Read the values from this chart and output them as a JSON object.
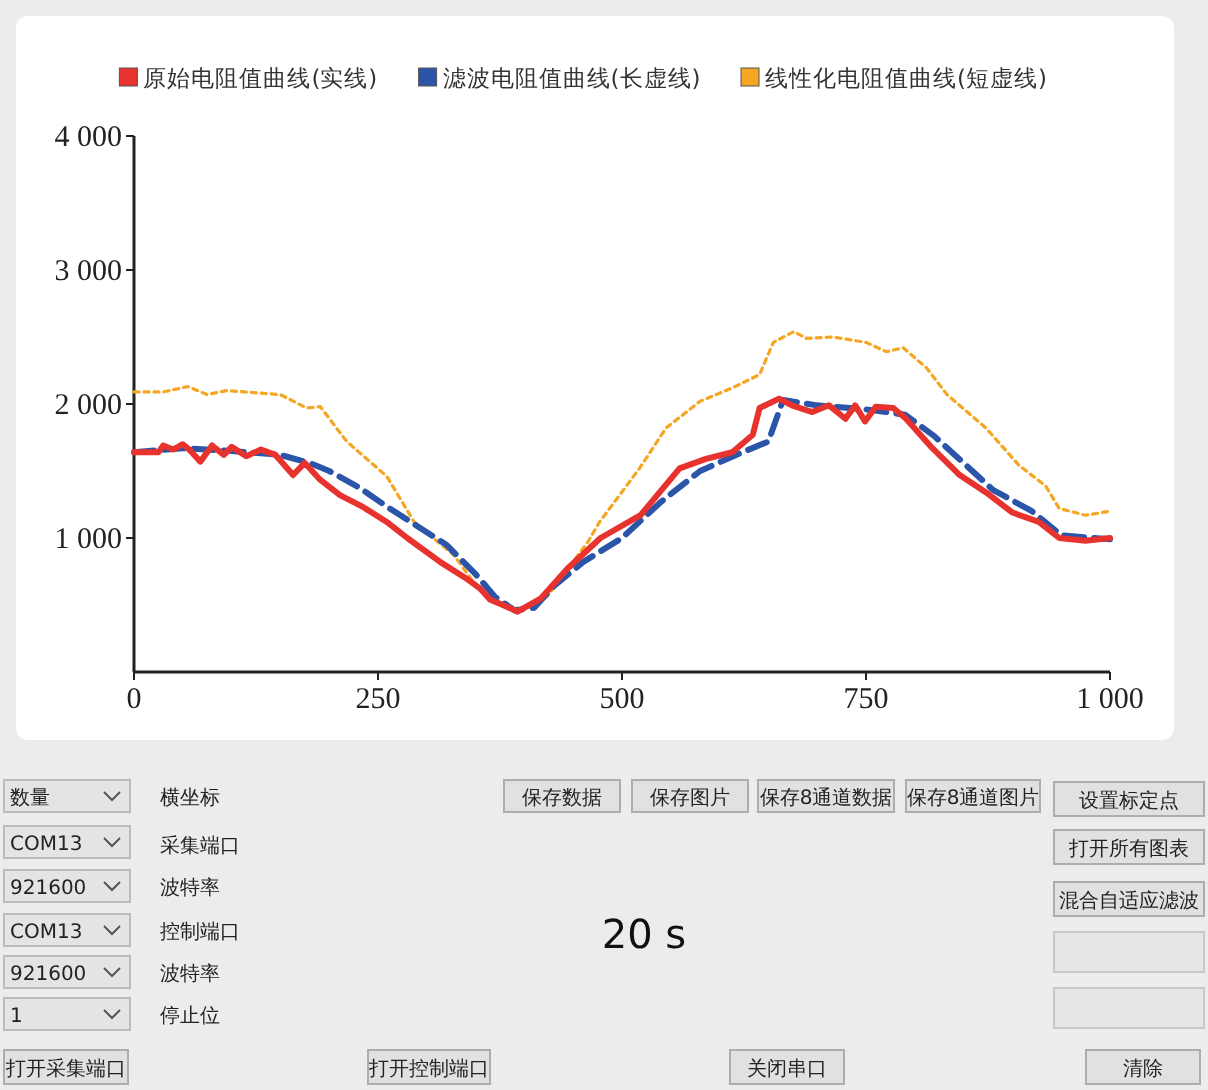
{
  "chart_data": [
    {
      "type": "line",
      "xlim": [
        0,
        1000
      ],
      "ylim": [
        0,
        4000
      ],
      "xticks": [
        0,
        250,
        500,
        750,
        {
          "value": 1000,
          "label": "1 000"
        }
      ],
      "yticks": [
        {
          "value": 1000,
          "label": "1 000"
        },
        {
          "value": 2000,
          "label": "2 000"
        },
        {
          "value": 3000,
          "label": "3 000"
        },
        {
          "value": 4000,
          "label": "4 000"
        }
      ],
      "grid": false,
      "legend": "top",
      "marker": "none",
      "series": [
        {
          "name": "原始电阻值曲线(实线)",
          "color": "#e8322e",
          "line_style": "solid",
          "x": [
            0,
            25,
            30,
            40,
            50,
            58,
            68,
            80,
            92,
            100,
            115,
            130,
            145,
            163,
            175,
            190,
            211,
            235,
            259,
            280,
            314,
            340,
            355,
            365,
            375,
            393,
            417,
            444,
            478,
            519,
            559,
            586,
            613,
            634,
            641,
            661,
            674,
            695,
            712,
            729,
            739,
            749,
            760,
            778,
            791,
            818,
            846,
            873,
            900,
            927,
            948,
            975,
            1000
          ],
          "values": [
            1640,
            1640,
            1690,
            1660,
            1700,
            1650,
            1570,
            1690,
            1620,
            1680,
            1610,
            1660,
            1620,
            1470,
            1560,
            1440,
            1320,
            1230,
            1120,
            1000,
            820,
            700,
            620,
            540,
            510,
            450,
            550,
            770,
            1000,
            1170,
            1520,
            1590,
            1640,
            1770,
            1970,
            2040,
            1990,
            1940,
            1990,
            1890,
            1990,
            1870,
            1980,
            1970,
            1890,
            1670,
            1470,
            1340,
            1190,
            1120,
            1000,
            980,
            1000
          ]
        },
        {
          "name": "滤波电阻值曲线(长虚线)",
          "color": "#2a55a8",
          "line_style": "dashed",
          "x": [
            0,
            50,
            100,
            150,
            180,
            200,
            230,
            260,
            290,
            320,
            350,
            370,
            390,
            410,
            430,
            460,
            500,
            540,
            580,
            620,
            650,
            665,
            700,
            750,
            790,
            820,
            850,
            880,
            920,
            950,
            1000
          ],
          "values": [
            1640,
            1670,
            1650,
            1620,
            1560,
            1500,
            1380,
            1230,
            1090,
            950,
            730,
            560,
            460,
            480,
            640,
            820,
            1000,
            1270,
            1500,
            1630,
            1720,
            2030,
            1990,
            1960,
            1920,
            1760,
            1560,
            1360,
            1200,
            1020,
            990
          ]
        },
        {
          "name": "线性化电阻值曲线(短虚线)",
          "color": "#f5a623",
          "line_style": "dotted",
          "x": [
            0,
            30,
            55,
            75,
            95,
            150,
            177,
            191,
            218,
            259,
            287,
            328,
            348,
            369,
            396,
            424,
            465,
            477,
            518,
            545,
            580,
            613,
            641,
            655,
            676,
            689,
            716,
            750,
            771,
            788,
            812,
            833,
            873,
            907,
            934,
            948,
            975,
            1000
          ],
          "values": [
            2090,
            2090,
            2130,
            2070,
            2100,
            2070,
            1970,
            1980,
            1720,
            1460,
            1120,
            870,
            670,
            520,
            470,
            570,
            970,
            1120,
            1520,
            1820,
            2020,
            2120,
            2220,
            2460,
            2540,
            2490,
            2500,
            2460,
            2390,
            2420,
            2270,
            2070,
            1820,
            1540,
            1390,
            1220,
            1170,
            1200
          ]
        }
      ]
    },
    {
      "type": "other",
      "annotations": [
        "数量",
        "横坐标",
        "COM13",
        "采集端口",
        "921600",
        "波特率",
        "COM13",
        "控制端口",
        "921600",
        "波特率",
        "1",
        "停止位",
        "打开采集端口",
        "打开控制端口",
        "关闭串口",
        "清除",
        "保存数据",
        "保存图片",
        "保存8通道数据",
        "保存8通道图片",
        "设置标定点",
        "打开所有图表",
        "混合自适应滤波",
        "20 s"
      ]
    }
  ]
}
